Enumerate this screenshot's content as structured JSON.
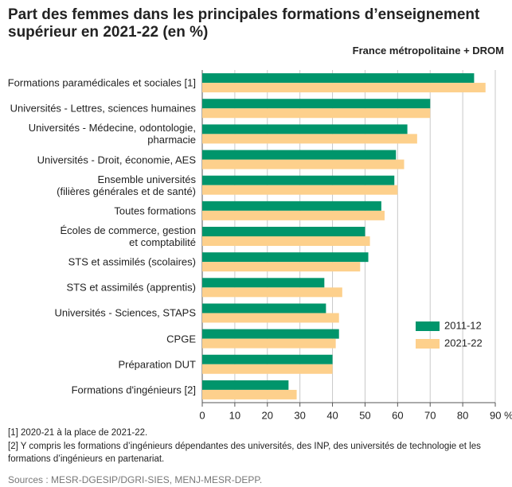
{
  "chart_data": {
    "type": "bar",
    "orientation": "horizontal",
    "title": "Part des femmes dans les principales formations d’enseignement supérieur en 2021-22 (en %)",
    "subtitle": "France métropolitaine + DROM",
    "categories": [
      "Formations paramédicales et sociales [1]",
      "Universités - Lettres, sciences humaines",
      "Universités - Médecine, odontologie,\npharmacie",
      "Universités - Droit, économie, AES",
      "Ensemble universités\n(filières générales et de santé)",
      "Toutes formations",
      "Écoles de commerce, gestion\net comptabilité",
      "STS et assimilés (scolaires)",
      "STS et assimilés (apprentis)",
      "Universités - Sciences, STAPS",
      "CPGE",
      "Préparation DUT",
      "Formations d'ingénieurs [2]"
    ],
    "series": [
      {
        "name": "2011-12",
        "color": "#00956b",
        "values": [
          83.5,
          70,
          63,
          59.5,
          59,
          55,
          50,
          51,
          37.5,
          38,
          42,
          40,
          26.5
        ]
      },
      {
        "name": "2021-22",
        "color": "#fdd08c",
        "values": [
          87,
          70,
          66,
          62,
          60,
          56,
          51.5,
          48.5,
          43,
          42,
          41,
          40,
          29
        ]
      }
    ],
    "xlim": [
      0,
      90
    ],
    "xticks": [
      0,
      10,
      20,
      30,
      40,
      50,
      60,
      70,
      80,
      {
        "value": 90,
        "label": "90 %"
      }
    ],
    "grid": true,
    "legend": "lower right",
    "notes": [
      "[1] 2020-21 à la place de 2021-22.",
      "[2] Y compris les formations d’ingénieurs dépendantes des universités, des INP, des universités de technologie et les formations d’ingénieurs en partenariat."
    ],
    "source": "Sources : MESR-DGESIP/DGRI-SIES, MENJ-MESR-DEPP."
  }
}
